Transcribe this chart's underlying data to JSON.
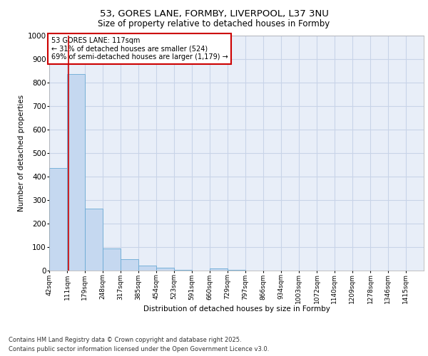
{
  "title_line1": "53, GORES LANE, FORMBY, LIVERPOOL, L37 3NU",
  "title_line2": "Size of property relative to detached houses in Formby",
  "xlabel": "Distribution of detached houses by size in Formby",
  "ylabel": "Number of detached properties",
  "bin_labels": [
    "42sqm",
    "111sqm",
    "179sqm",
    "248sqm",
    "317sqm",
    "385sqm",
    "454sqm",
    "523sqm",
    "591sqm",
    "660sqm",
    "729sqm",
    "797sqm",
    "866sqm",
    "934sqm",
    "1003sqm",
    "1072sqm",
    "1140sqm",
    "1209sqm",
    "1278sqm",
    "1346sqm",
    "1415sqm"
  ],
  "bin_edges": [
    42,
    111,
    179,
    248,
    317,
    385,
    454,
    523,
    591,
    660,
    729,
    797,
    866,
    934,
    1003,
    1072,
    1140,
    1209,
    1278,
    1346,
    1415
  ],
  "bar_heights": [
    435,
    835,
    265,
    95,
    47,
    22,
    12,
    2,
    1,
    8,
    2,
    1,
    1,
    1,
    1,
    1,
    1,
    1,
    1,
    1,
    1
  ],
  "bar_color": "#c5d8f0",
  "bar_edge_color": "#6aaad4",
  "property_size": 117,
  "property_label": "53 GORES LANE: 117sqm",
  "pct_smaller": "31% of detached houses are smaller (524)",
  "pct_larger_semi": "69% of semi-detached houses are larger (1,179)",
  "vline_color": "#cc0000",
  "ylim": [
    0,
    1000
  ],
  "yticks": [
    0,
    100,
    200,
    300,
    400,
    500,
    600,
    700,
    800,
    900,
    1000
  ],
  "grid_color": "#c8d4e8",
  "background_color": "#e8eef8",
  "footer_line1": "Contains HM Land Registry data © Crown copyright and database right 2025.",
  "footer_line2": "Contains public sector information licensed under the Open Government Licence v3.0."
}
